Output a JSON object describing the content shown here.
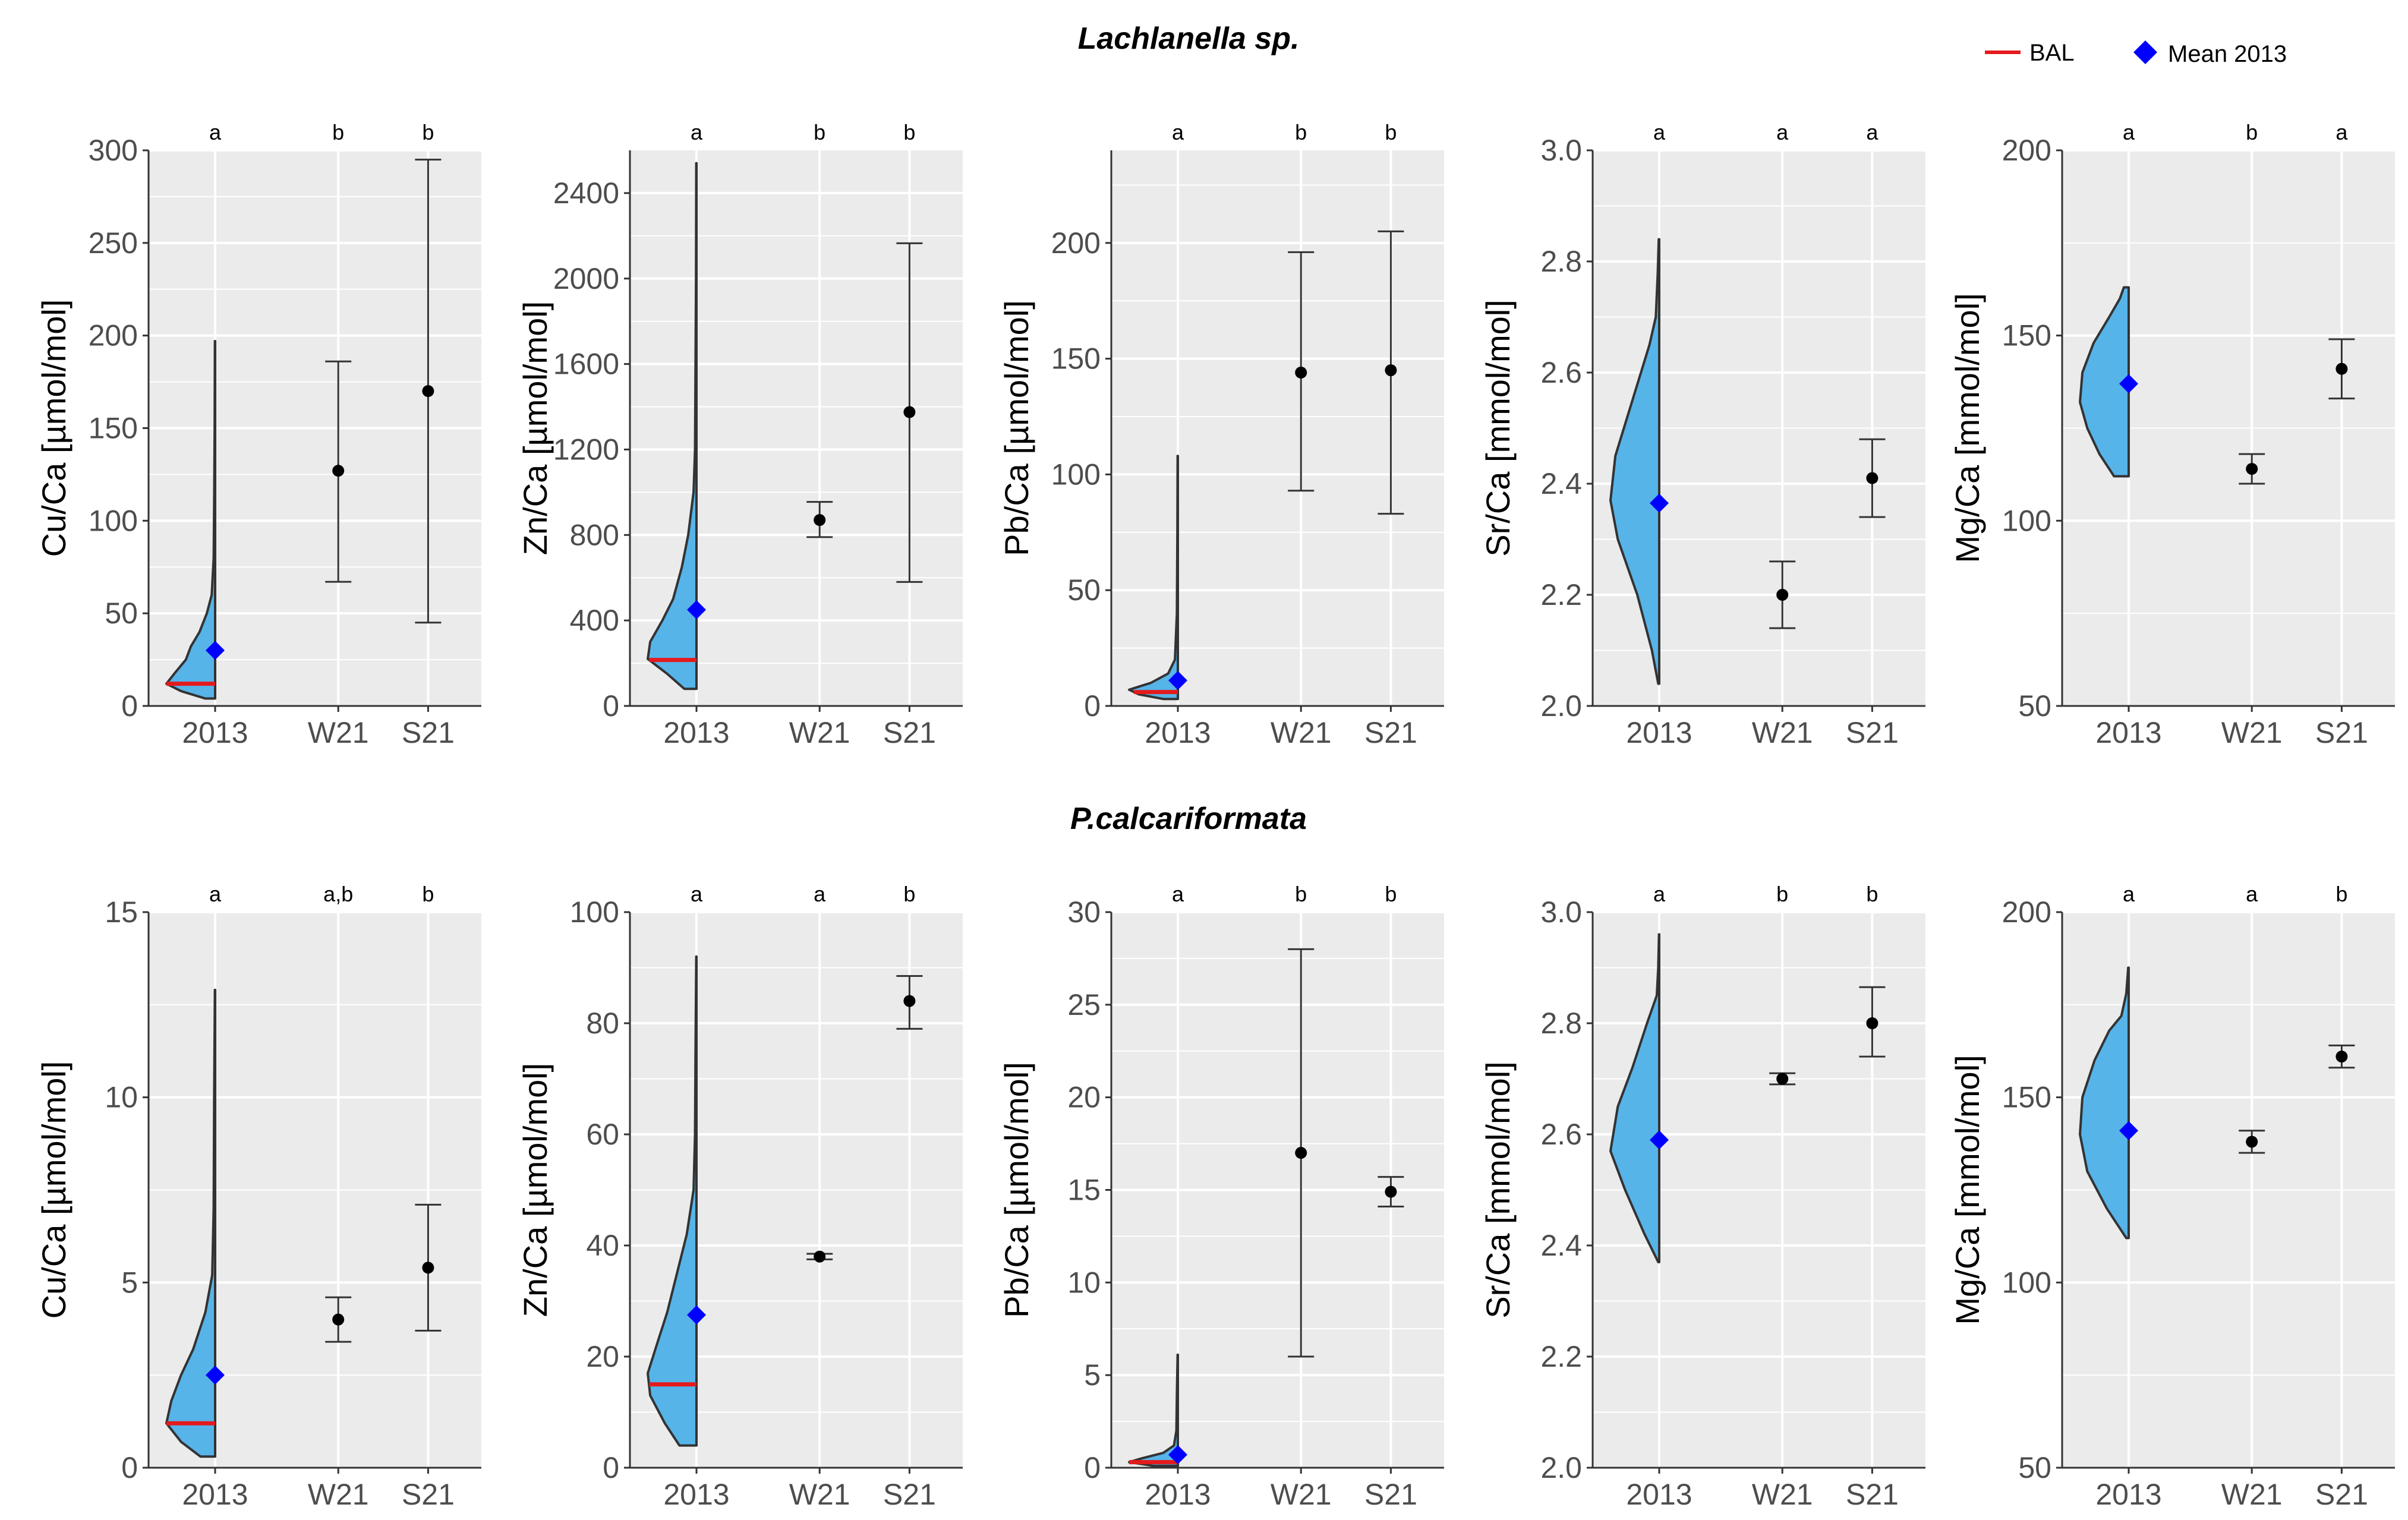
{
  "colors": {
    "panel_bg": "#ebebeb",
    "grid": "#ffffff",
    "violin_fill": "#56b4e9",
    "violin_stroke": "#333333",
    "bal_line": "#e41a1c",
    "mean_2013": "#0000ff",
    "point": "#000000"
  },
  "legend": {
    "bal_label": "BAL",
    "mean_label": "Mean 2013"
  },
  "chart_data": [
    {
      "row": 0,
      "col": 0,
      "type": "violin+errorbar",
      "title": "Lachlanella sp.",
      "ylabel": "Cu/Ca [µmol/mol]",
      "categories": [
        "2013",
        "W21",
        "S21"
      ],
      "ylim": [
        0,
        300
      ],
      "yticks": [
        0,
        50,
        100,
        150,
        200,
        250,
        300
      ],
      "letters": [
        "a",
        "b",
        "b"
      ],
      "violin": {
        "min": 4,
        "max": 197,
        "mean": 30,
        "bal": 12,
        "profile": [
          [
            4,
            0.2
          ],
          [
            8,
            0.7
          ],
          [
            12,
            1.0
          ],
          [
            18,
            0.82
          ],
          [
            25,
            0.6
          ],
          [
            32,
            0.5
          ],
          [
            40,
            0.32
          ],
          [
            50,
            0.17
          ],
          [
            60,
            0.07
          ],
          [
            80,
            0.03
          ],
          [
            110,
            0.02
          ],
          [
            150,
            0.01
          ],
          [
            197,
            0.005
          ]
        ]
      },
      "points": [
        {
          "category": "W21",
          "mean": 127,
          "low": 67,
          "high": 186
        },
        {
          "category": "S21",
          "mean": 170,
          "low": 45,
          "high": 295
        }
      ]
    },
    {
      "row": 0,
      "col": 1,
      "type": "violin+errorbar",
      "ylabel": "Zn/Ca [µmol/mol]",
      "categories": [
        "2013",
        "W21",
        "S21"
      ],
      "ylim": [
        0,
        2600
      ],
      "yticks": [
        0,
        400,
        800,
        1200,
        1600,
        2000,
        2400
      ],
      "letters": [
        "a",
        "b",
        "b"
      ],
      "violin": {
        "min": 80,
        "max": 2540,
        "mean": 450,
        "bal": 215,
        "profile": [
          [
            80,
            0.25
          ],
          [
            150,
            0.6
          ],
          [
            220,
            1.0
          ],
          [
            300,
            0.95
          ],
          [
            400,
            0.7
          ],
          [
            500,
            0.48
          ],
          [
            650,
            0.3
          ],
          [
            800,
            0.17
          ],
          [
            1000,
            0.06
          ],
          [
            1200,
            0.03
          ],
          [
            1600,
            0.02
          ],
          [
            2000,
            0.01
          ],
          [
            2540,
            0.005
          ]
        ]
      },
      "points": [
        {
          "category": "W21",
          "mean": 870,
          "low": 790,
          "high": 955
        },
        {
          "category": "S21",
          "mean": 1375,
          "low": 580,
          "high": 2165
        }
      ]
    },
    {
      "row": 0,
      "col": 2,
      "type": "violin+errorbar",
      "ylabel": "Pb/Ca [µmol/mol]",
      "categories": [
        "2013",
        "W21",
        "S21"
      ],
      "ylim": [
        0,
        240
      ],
      "yticks": [
        0,
        50,
        100,
        150,
        200
      ],
      "letters": [
        "a",
        "b",
        "b"
      ],
      "violin": {
        "min": 3,
        "max": 108,
        "mean": 11,
        "bal": 6,
        "profile": [
          [
            3,
            0.3
          ],
          [
            5,
            0.8
          ],
          [
            7,
            1.0
          ],
          [
            10,
            0.55
          ],
          [
            14,
            0.2
          ],
          [
            20,
            0.06
          ],
          [
            40,
            0.02
          ],
          [
            75,
            0.01
          ],
          [
            108,
            0.005
          ]
        ]
      },
      "points": [
        {
          "category": "W21",
          "mean": 144,
          "low": 93,
          "high": 196
        },
        {
          "category": "S21",
          "mean": 145,
          "low": 83,
          "high": 205
        }
      ]
    },
    {
      "row": 0,
      "col": 3,
      "type": "violin+errorbar",
      "ylabel": "Sr/Ca [mmol/mol]",
      "categories": [
        "2013",
        "W21",
        "S21"
      ],
      "ylim": [
        2.0,
        3.0
      ],
      "yticks": [
        2.0,
        2.2,
        2.4,
        2.6,
        2.8,
        3.0
      ],
      "letters": [
        "a",
        "a",
        "a"
      ],
      "violin": {
        "min": 2.04,
        "max": 2.84,
        "mean": 2.365,
        "bal": null,
        "profile": [
          [
            2.04,
            0.02
          ],
          [
            2.1,
            0.15
          ],
          [
            2.2,
            0.45
          ],
          [
            2.3,
            0.85
          ],
          [
            2.37,
            1.0
          ],
          [
            2.45,
            0.9
          ],
          [
            2.55,
            0.55
          ],
          [
            2.65,
            0.2
          ],
          [
            2.7,
            0.07
          ],
          [
            2.78,
            0.03
          ],
          [
            2.84,
            0.01
          ]
        ]
      },
      "points": [
        {
          "category": "W21",
          "mean": 2.2,
          "low": 2.14,
          "high": 2.26
        },
        {
          "category": "S21",
          "mean": 2.41,
          "low": 2.34,
          "high": 2.48
        }
      ]
    },
    {
      "row": 0,
      "col": 4,
      "type": "violin+errorbar",
      "ylabel": "Mg/Ca [mmol/mol]",
      "categories": [
        "2013",
        "W21",
        "S21"
      ],
      "ylim": [
        50,
        200
      ],
      "yticks": [
        50,
        100,
        150,
        200
      ],
      "letters": [
        "a",
        "b",
        "a"
      ],
      "violin": {
        "min": 112,
        "max": 163,
        "mean": 137,
        "bal": null,
        "profile": [
          [
            112,
            0.3
          ],
          [
            118,
            0.6
          ],
          [
            125,
            0.85
          ],
          [
            132,
            1.0
          ],
          [
            140,
            0.95
          ],
          [
            148,
            0.72
          ],
          [
            155,
            0.4
          ],
          [
            160,
            0.18
          ],
          [
            163,
            0.1
          ]
        ]
      },
      "points": [
        {
          "category": "W21",
          "mean": 114,
          "low": 110,
          "high": 118
        },
        {
          "category": "S21",
          "mean": 141,
          "low": 133,
          "high": 149
        }
      ]
    },
    {
      "row": 1,
      "col": 0,
      "type": "violin+errorbar",
      "title": "P.calcariformata",
      "ylabel": "Cu/Ca [µmol/mol]",
      "categories": [
        "2013",
        "W21",
        "S21"
      ],
      "ylim": [
        0,
        15
      ],
      "yticks": [
        0,
        5,
        10,
        15
      ],
      "letters": [
        "a",
        "a,b",
        "b"
      ],
      "violin": {
        "min": 0.3,
        "max": 12.9,
        "mean": 2.5,
        "bal": 1.2,
        "profile": [
          [
            0.3,
            0.3
          ],
          [
            0.7,
            0.7
          ],
          [
            1.2,
            1.0
          ],
          [
            1.8,
            0.9
          ],
          [
            2.5,
            0.7
          ],
          [
            3.2,
            0.45
          ],
          [
            4.2,
            0.2
          ],
          [
            5.2,
            0.06
          ],
          [
            7,
            0.03
          ],
          [
            10,
            0.02
          ],
          [
            12.9,
            0.005
          ]
        ]
      },
      "points": [
        {
          "category": "W21",
          "mean": 4.0,
          "low": 3.4,
          "high": 4.6
        },
        {
          "category": "S21",
          "mean": 5.4,
          "low": 3.7,
          "high": 7.1
        }
      ]
    },
    {
      "row": 1,
      "col": 1,
      "type": "violin+errorbar",
      "ylabel": "Zn/Ca [µmol/mol]",
      "categories": [
        "2013",
        "W21",
        "S21"
      ],
      "ylim": [
        0,
        100
      ],
      "yticks": [
        0,
        20,
        40,
        60,
        80,
        100
      ],
      "letters": [
        "a",
        "a",
        "b"
      ],
      "violin": {
        "min": 4,
        "max": 92,
        "mean": 27.5,
        "bal": 15,
        "profile": [
          [
            4,
            0.35
          ],
          [
            8,
            0.65
          ],
          [
            13,
            0.95
          ],
          [
            17,
            1.0
          ],
          [
            22,
            0.82
          ],
          [
            28,
            0.6
          ],
          [
            35,
            0.4
          ],
          [
            42,
            0.2
          ],
          [
            50,
            0.06
          ],
          [
            60,
            0.03
          ],
          [
            75,
            0.02
          ],
          [
            92,
            0.005
          ]
        ]
      },
      "points": [
        {
          "category": "W21",
          "mean": 38,
          "low": 37.5,
          "high": 38.5
        },
        {
          "category": "S21",
          "mean": 84,
          "low": 79,
          "high": 88.5
        }
      ]
    },
    {
      "row": 1,
      "col": 2,
      "type": "violin+errorbar",
      "ylabel": "Pb/Ca [µmol/mol]",
      "categories": [
        "2013",
        "W21",
        "S21"
      ],
      "ylim": [
        0,
        30
      ],
      "yticks": [
        0,
        5,
        10,
        15,
        20,
        25,
        30
      ],
      "letters": [
        "a",
        "b",
        "b"
      ],
      "violin": {
        "min": 0.1,
        "max": 6.1,
        "mean": 0.7,
        "bal": 0.3,
        "profile": [
          [
            0.1,
            0.5
          ],
          [
            0.3,
            1.0
          ],
          [
            0.5,
            0.75
          ],
          [
            0.8,
            0.3
          ],
          [
            1.2,
            0.08
          ],
          [
            2,
            0.03
          ],
          [
            4,
            0.02
          ],
          [
            6.1,
            0.005
          ]
        ]
      },
      "points": [
        {
          "category": "W21",
          "mean": 17,
          "low": 6,
          "high": 28
        },
        {
          "category": "S21",
          "mean": 14.9,
          "low": 14.1,
          "high": 15.7
        }
      ]
    },
    {
      "row": 1,
      "col": 3,
      "type": "violin+errorbar",
      "ylabel": "Sr/Ca [mmol/mol]",
      "categories": [
        "2013",
        "W21",
        "S21"
      ],
      "ylim": [
        2.0,
        3.0
      ],
      "yticks": [
        2.0,
        2.2,
        2.4,
        2.6,
        2.8,
        3.0
      ],
      "letters": [
        "a",
        "b",
        "b"
      ],
      "violin": {
        "min": 2.37,
        "max": 2.96,
        "mean": 2.59,
        "bal": null,
        "profile": [
          [
            2.37,
            0.02
          ],
          [
            2.42,
            0.3
          ],
          [
            2.5,
            0.7
          ],
          [
            2.57,
            1.0
          ],
          [
            2.65,
            0.85
          ],
          [
            2.72,
            0.55
          ],
          [
            2.8,
            0.25
          ],
          [
            2.85,
            0.05
          ],
          [
            2.9,
            0.02
          ],
          [
            2.96,
            0.005
          ]
        ]
      },
      "points": [
        {
          "category": "W21",
          "mean": 2.7,
          "low": 2.69,
          "high": 2.71
        },
        {
          "category": "S21",
          "mean": 2.8,
          "low": 2.74,
          "high": 2.865
        }
      ]
    },
    {
      "row": 1,
      "col": 4,
      "type": "violin+errorbar",
      "ylabel": "Mg/Ca [mmol/mol]",
      "categories": [
        "2013",
        "W21",
        "S21"
      ],
      "ylim": [
        50,
        200
      ],
      "yticks": [
        50,
        100,
        150,
        200
      ],
      "letters": [
        "a",
        "a",
        "b"
      ],
      "violin": {
        "min": 112,
        "max": 185,
        "mean": 141,
        "bal": null,
        "profile": [
          [
            112,
            0.05
          ],
          [
            120,
            0.45
          ],
          [
            130,
            0.85
          ],
          [
            140,
            1.0
          ],
          [
            150,
            0.95
          ],
          [
            160,
            0.7
          ],
          [
            168,
            0.4
          ],
          [
            172,
            0.15
          ],
          [
            178,
            0.05
          ],
          [
            185,
            0.01
          ]
        ]
      },
      "points": [
        {
          "category": "W21",
          "mean": 138,
          "low": 135,
          "high": 141
        },
        {
          "category": "S21",
          "mean": 161,
          "low": 158,
          "high": 164
        }
      ]
    }
  ]
}
